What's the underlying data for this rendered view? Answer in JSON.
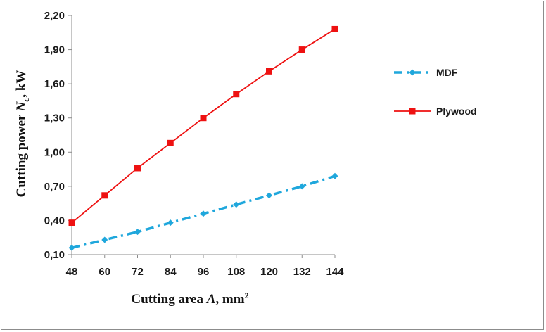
{
  "chart_data": {
    "type": "line",
    "categories": [
      "48",
      "60",
      "72",
      "84",
      "96",
      "108",
      "120",
      "132",
      "144"
    ],
    "x": [
      48,
      60,
      72,
      84,
      96,
      108,
      120,
      132,
      144
    ],
    "xlabel_parts": {
      "text": "Cutting area ",
      "var": "A",
      "unit": ", mm",
      "sup": "2"
    },
    "ylabel_parts": {
      "text": "Cutting power ",
      "var": "N",
      "sub": "c",
      "unit": ", kW"
    },
    "ylim": [
      0.1,
      2.2
    ],
    "yticks": [
      "0,10",
      "0,40",
      "0,70",
      "1,00",
      "1,30",
      "1,60",
      "1,90",
      "2,20"
    ],
    "ytick_values": [
      0.1,
      0.4,
      0.7,
      1.0,
      1.3,
      1.6,
      1.9,
      2.2
    ],
    "grid": false,
    "legend_position": "right",
    "series": [
      {
        "name": "MDF",
        "color": "#1fa7dc",
        "style": "dash-dot",
        "marker": "diamond",
        "values": [
          0.16,
          0.23,
          0.3,
          0.38,
          0.46,
          0.54,
          0.62,
          0.7,
          0.79
        ]
      },
      {
        "name": "Plywood",
        "color": "#ee1111",
        "style": "solid",
        "marker": "square",
        "values": [
          0.38,
          0.62,
          0.86,
          1.08,
          1.3,
          1.51,
          1.71,
          1.9,
          2.08
        ]
      }
    ]
  }
}
